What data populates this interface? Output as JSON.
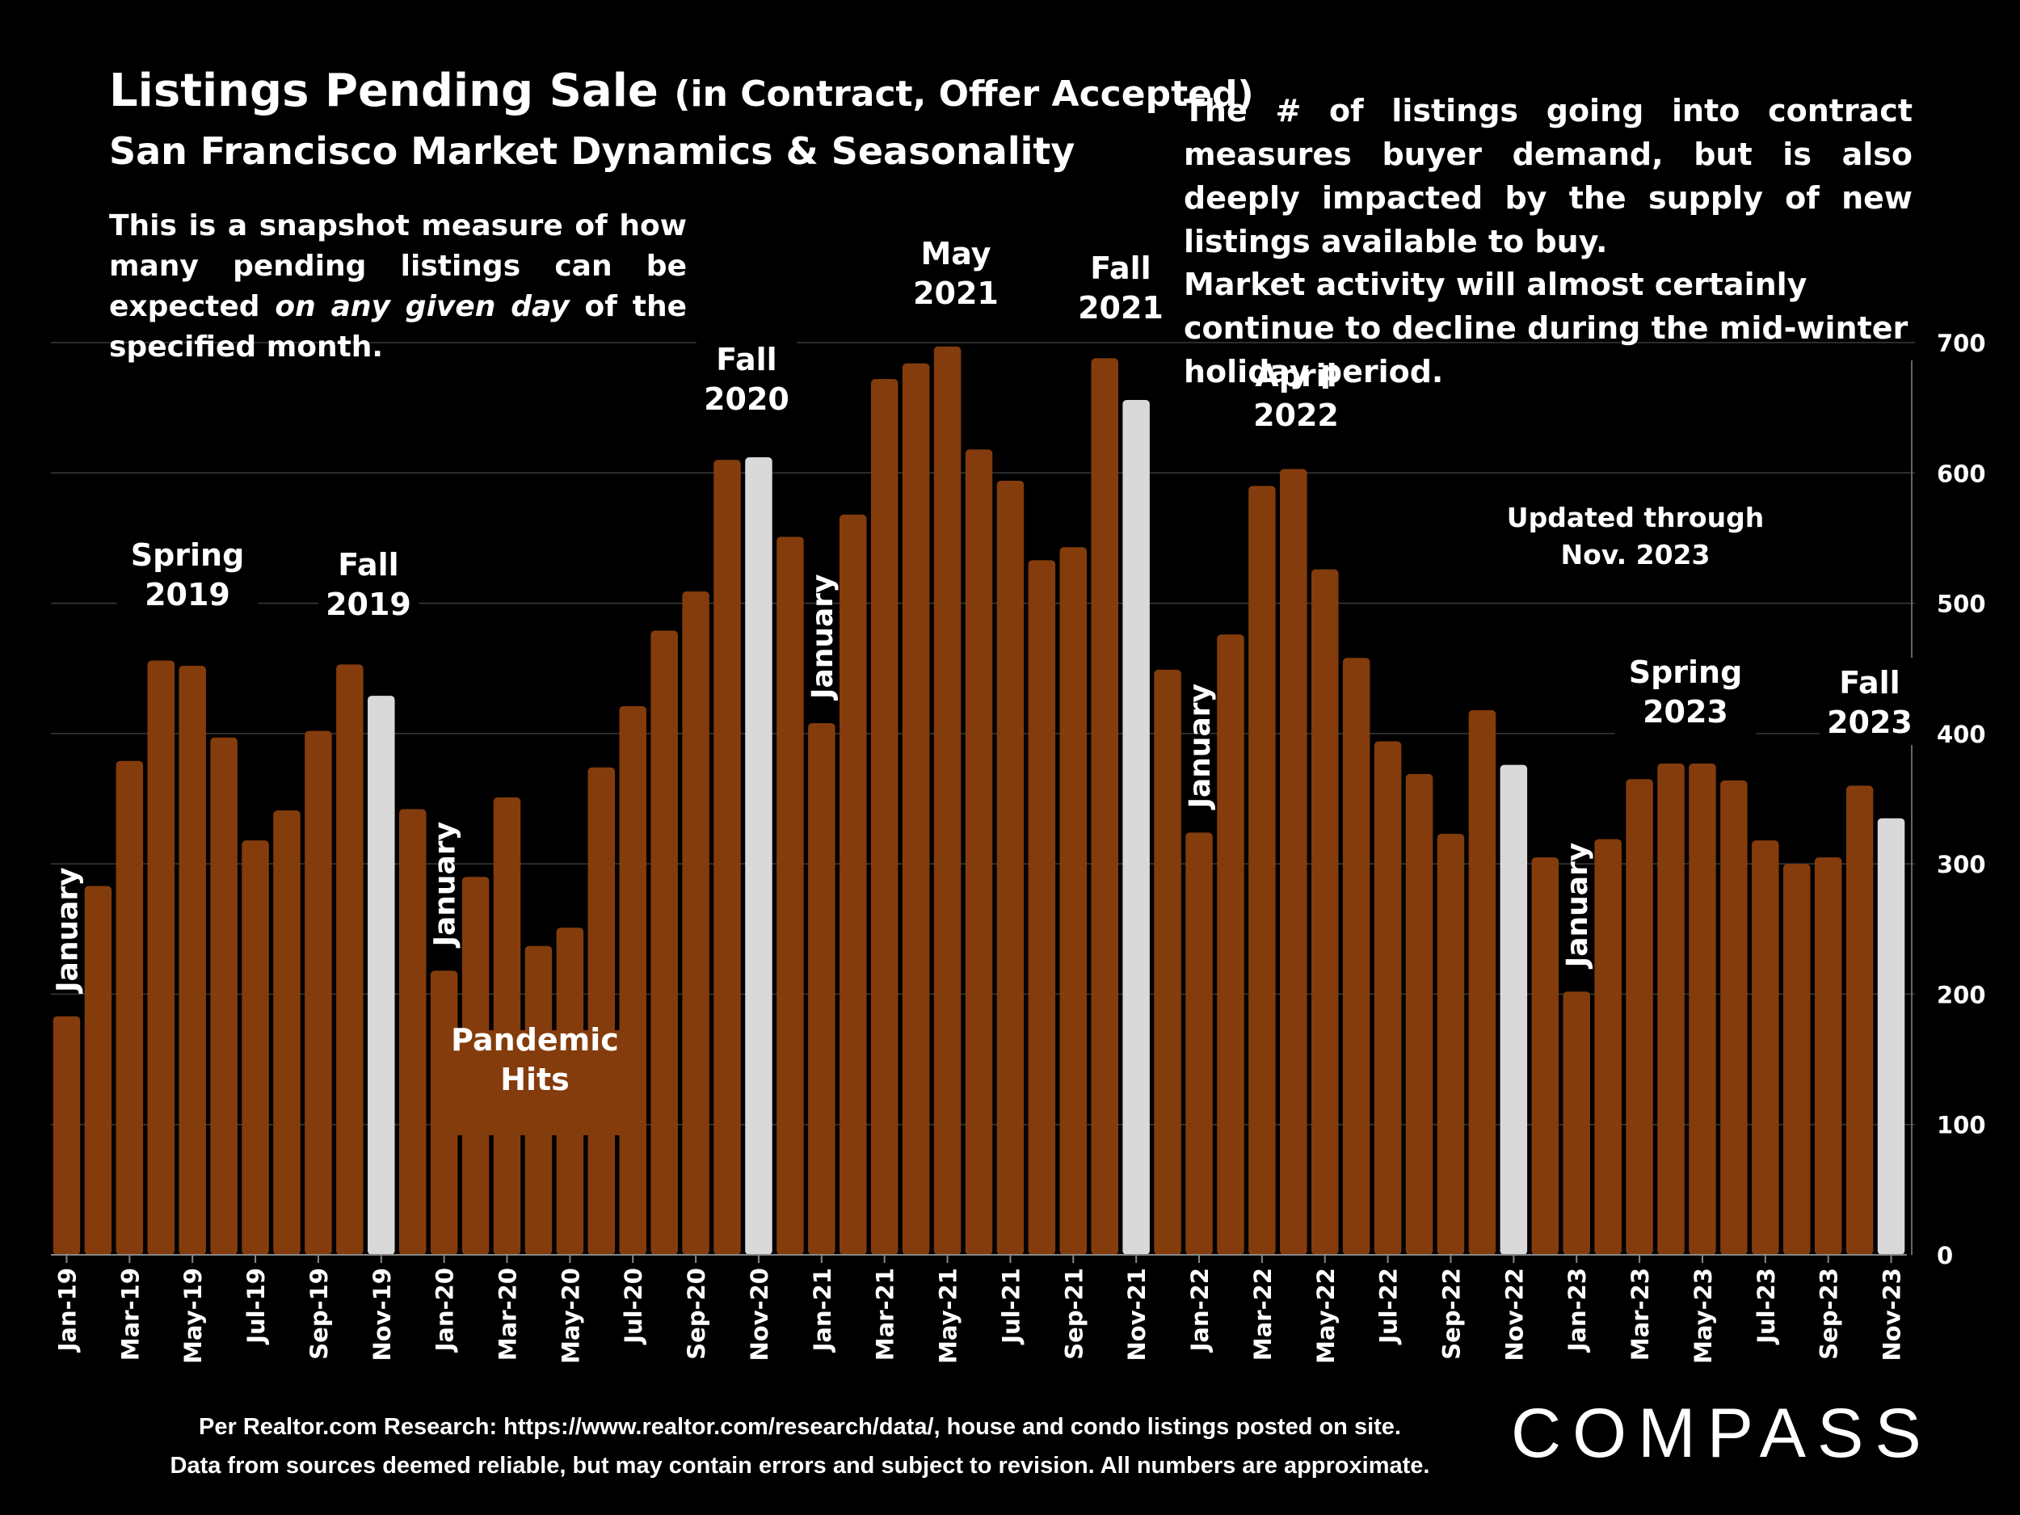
{
  "header": {
    "title_main": "Listings Pending Sale",
    "title_paren": "(in Contract, Offer Accepted)",
    "subtitle": "San Francisco Market Dynamics & Seasonality",
    "snapshot_1": "This is a snapshot measure of how many pending listings can be expected ",
    "snapshot_em": "on any given day",
    "snapshot_2": " of the specified month.",
    "desc_1": "The # of listings going into contract measures buyer demand, but is also deeply impacted by the supply of new listings available to buy.",
    "desc_2": "Market activity will almost certainly continue to decline during the mid-winter holiday period."
  },
  "footer": {
    "source": "Per Realtor.com Research:  https://www.realtor.com/research/data/, house and condo listings posted on site.",
    "disclaimer": "Data from sources deemed reliable, but may contain errors and subject to revision. All numbers are approximate.",
    "logo": "COMPASS"
  },
  "chart_data": {
    "type": "bar",
    "ylim": [
      0,
      700
    ],
    "y_ticks": [
      0,
      100,
      200,
      300,
      400,
      500,
      600,
      700
    ],
    "y_axis_side": "right",
    "grid": true,
    "colors": {
      "bar": "#843C0C",
      "highlight": "#D9D9D9",
      "background": "#000000",
      "grid": "#3a3a3a"
    },
    "categories": [
      "Jan-19",
      "Feb-19",
      "Mar-19",
      "Apr-19",
      "May-19",
      "Jun-19",
      "Jul-19",
      "Aug-19",
      "Sep-19",
      "Oct-19",
      "Nov-19",
      "Dec-19",
      "Jan-20",
      "Feb-20",
      "Mar-20",
      "Apr-20",
      "May-20",
      "Jun-20",
      "Jul-20",
      "Aug-20",
      "Sep-20",
      "Oct-20",
      "Nov-20",
      "Dec-20",
      "Jan-21",
      "Feb-21",
      "Mar-21",
      "Apr-21",
      "May-21",
      "Jun-21",
      "Jul-21",
      "Aug-21",
      "Sep-21",
      "Oct-21",
      "Nov-21",
      "Dec-21",
      "Jan-22",
      "Feb-22",
      "Mar-22",
      "Apr-22",
      "May-22",
      "Jun-22",
      "Jul-22",
      "Aug-22",
      "Sep-22",
      "Oct-22",
      "Nov-22",
      "Dec-22",
      "Jan-23",
      "Feb-23",
      "Mar-23",
      "Apr-23",
      "May-23",
      "Jun-23",
      "Jul-23",
      "Aug-23",
      "Sep-23",
      "Oct-23",
      "Nov-23"
    ],
    "tick_labels": [
      "Jan-19",
      "Mar-19",
      "May-19",
      "Jul-19",
      "Sep-19",
      "Nov-19",
      "Jan-20",
      "Mar-20",
      "May-20",
      "Jul-20",
      "Sep-20",
      "Nov-20",
      "Jan-21",
      "Mar-21",
      "May-21",
      "Jul-21",
      "Sep-21",
      "Nov-21",
      "Jan-22",
      "Mar-22",
      "May-22",
      "Jul-22",
      "Sep-22",
      "Nov-22",
      "Jan-23",
      "Mar-23",
      "May-23",
      "Jul-23",
      "Sep-23",
      "Nov-23"
    ],
    "values": [
      183,
      283,
      379,
      456,
      452,
      397,
      318,
      341,
      402,
      453,
      429,
      342,
      218,
      290,
      351,
      237,
      251,
      374,
      421,
      479,
      509,
      610,
      612,
      551,
      408,
      568,
      672,
      684,
      697,
      618,
      594,
      533,
      543,
      688,
      656,
      449,
      324,
      476,
      590,
      603,
      526,
      458,
      394,
      369,
      323,
      418,
      376,
      305,
      202,
      319,
      365,
      377,
      377,
      364,
      318,
      300,
      305,
      360,
      335
    ],
    "highlighted": [
      "Nov-19",
      "Nov-20",
      "Nov-21",
      "Nov-22",
      "Nov-23"
    ],
    "annotations": [
      {
        "text": "January",
        "category": "Jan-19",
        "rotated": true
      },
      {
        "text": "Spring 2019",
        "category": "Apr-19",
        "rotated": false
      },
      {
        "text": "Fall 2019",
        "category": "Nov-19",
        "rotated": false
      },
      {
        "text": "January",
        "category": "Jan-20",
        "rotated": true
      },
      {
        "text": "Pandemic Hits",
        "category": "Mar-20",
        "rotated": false
      },
      {
        "text": "Fall 2020",
        "category": "Nov-20",
        "rotated": false
      },
      {
        "text": "January",
        "category": "Jan-21",
        "rotated": true
      },
      {
        "text": "May 2021",
        "category": "May-21",
        "rotated": false
      },
      {
        "text": "Fall 2021",
        "category": "Nov-21",
        "rotated": false
      },
      {
        "text": "January",
        "category": "Jan-22",
        "rotated": true
      },
      {
        "text": "April 2022",
        "category": "Apr-22",
        "rotated": false
      },
      {
        "text": "Updated through Nov. 2023",
        "category": "Aug-23",
        "rotated": false
      },
      {
        "text": "January",
        "category": "Jan-23",
        "rotated": true
      },
      {
        "text": "Spring 2023",
        "category": "May-23",
        "rotated": false
      },
      {
        "text": "Fall 2023",
        "category": "Nov-23",
        "rotated": false
      }
    ]
  }
}
